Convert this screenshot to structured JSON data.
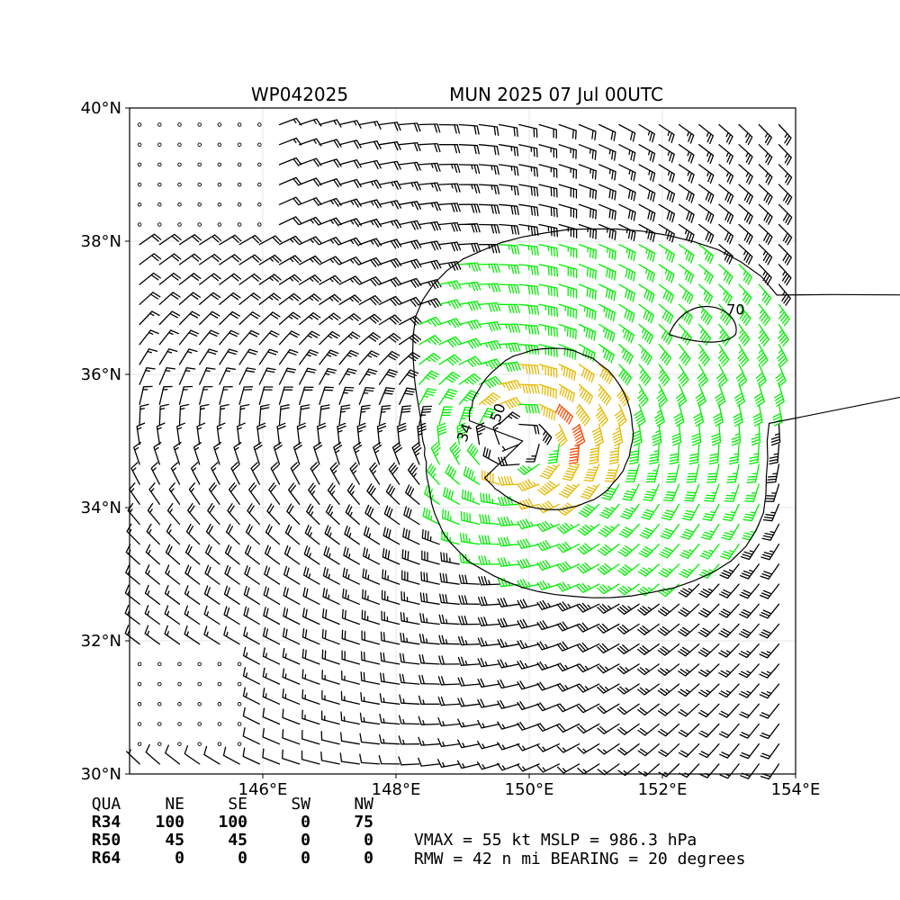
{
  "title_left": "WP042025",
  "title_right": "MUN 2025 07 Jul 00UTC",
  "chart_data": {
    "type": "map",
    "x_axis": {
      "ticks": [
        "146°E",
        "148°E",
        "150°E",
        "152°E",
        "154°E"
      ],
      "range": [
        144,
        154
      ]
    },
    "y_axis": {
      "ticks": [
        "30°N",
        "32°N",
        "34°N",
        "36°N",
        "38°N",
        "40°N"
      ],
      "range": [
        30,
        40
      ]
    },
    "storm_center": {
      "lon": 149.9,
      "lat": 35.0
    },
    "wind_barbs": {
      "spacing_deg": 0.3,
      "colors": {
        "below_34kt": "#000000",
        "34_to_50kt": "#00ee00",
        "50_to_64kt": "#e6b800",
        "above_64kt": "#ff4500"
      }
    },
    "contours": [
      {
        "label": "34",
        "color": "#000000"
      },
      {
        "label": "50",
        "color": "#000000"
      },
      {
        "label": "70",
        "color": "#000000"
      }
    ],
    "grid": true
  },
  "radii_table": {
    "headers": [
      "QUA",
      "NE",
      "SE",
      "SW",
      "NW"
    ],
    "rows": [
      {
        "label": "R34",
        "values": [
          "100",
          "100",
          "0",
          "75"
        ]
      },
      {
        "label": "R50",
        "values": [
          "45",
          "45",
          "0",
          "0"
        ]
      },
      {
        "label": "R64",
        "values": [
          "0",
          "0",
          "0",
          "0"
        ]
      }
    ]
  },
  "stats": {
    "line1": "VMAX =  55 kt MSLP = 986.3 hPa",
    "line2": "RMW =  42 n mi BEARING =  20 degrees"
  }
}
